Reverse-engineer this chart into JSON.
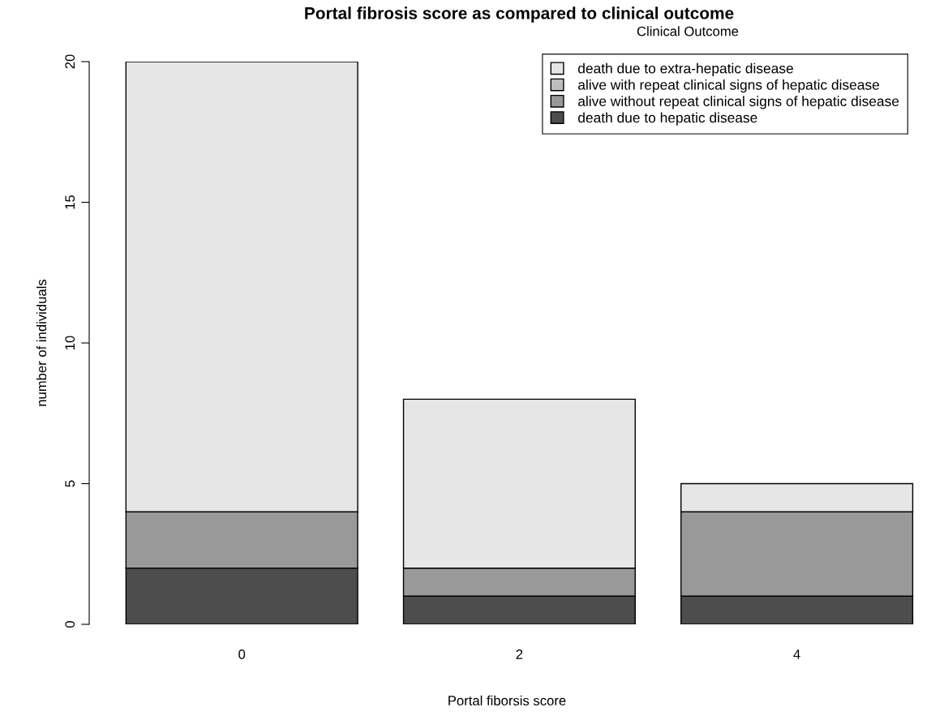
{
  "chart_data": {
    "type": "bar",
    "title": "Portal fibrosis score as compared to clinical outcome",
    "xlabel": "Portal fiborsis score",
    "ylabel": "number of individuals",
    "legend_title": "Clinical Outcome",
    "categories": [
      "0",
      "2",
      "4"
    ],
    "stacked": true,
    "series": [
      {
        "name": "death due to hepatic disease",
        "color": "#4d4d4d",
        "values": [
          2,
          1,
          1
        ]
      },
      {
        "name": "alive without repeat clinical signs of hepatic disease",
        "color": "#999999",
        "values": [
          2,
          1,
          3
        ]
      },
      {
        "name": "alive with repeat clinical signs of hepatic disease",
        "color": "#bebebe",
        "values": [
          0,
          0,
          0
        ]
      },
      {
        "name": "death due to extra-hepatic disease",
        "color": "#e6e6e6",
        "values": [
          16,
          6,
          1
        ]
      }
    ],
    "ylim": [
      0,
      20
    ],
    "yticks": [
      0,
      5,
      10,
      15,
      20
    ],
    "grid": false,
    "legend": "top right"
  }
}
